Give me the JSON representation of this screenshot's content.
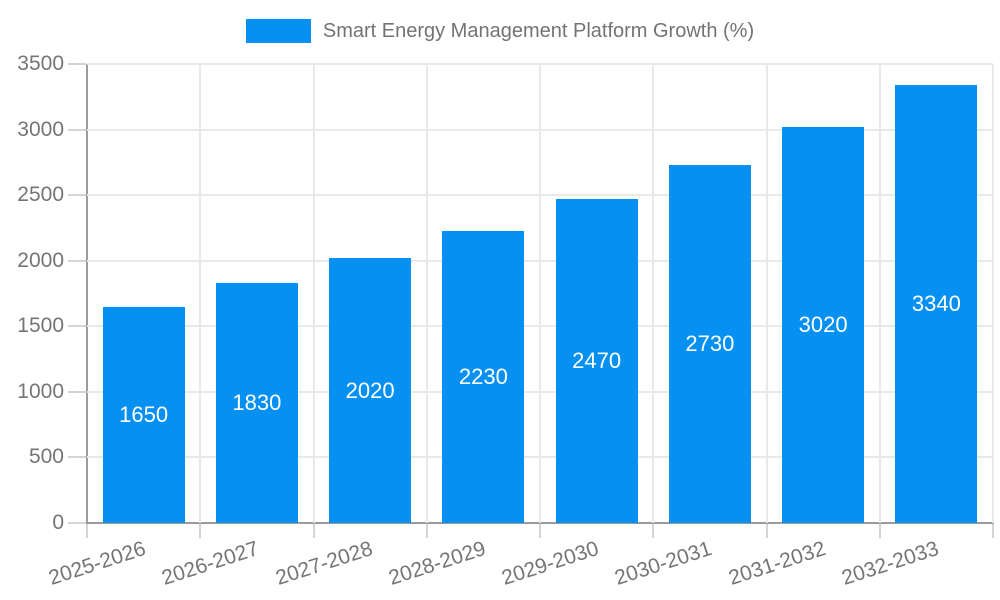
{
  "legend": {
    "title": "Smart Energy Management Platform Growth (%)"
  },
  "chart_data": {
    "type": "bar",
    "title": "Smart Energy Management Platform Growth (%)",
    "series_name": "Smart Energy Management Platform Growth (%)",
    "categories": [
      "2025-2026",
      "2026-2027",
      "2027-2028",
      "2028-2029",
      "2029-2030",
      "2030-2031",
      "2031-2032",
      "2032-2033"
    ],
    "values": [
      1650,
      1830,
      2020,
      2230,
      2470,
      2730,
      3020,
      3340
    ],
    "xlabel": "",
    "ylabel": "",
    "ylim": [
      0,
      3500
    ],
    "ytick_step": 500,
    "yticks": [
      0,
      500,
      1000,
      1500,
      2000,
      2500,
      3000,
      3500
    ],
    "grid": true,
    "legend_position": "top-center",
    "bar_color": "#0590f2",
    "bar_label_color": "#ffffff",
    "axis_text_color": "#757575",
    "gridline_color": "#e9e9e9",
    "axis_line_color": "#9b9b9b",
    "x_label_rotation_deg": -18
  }
}
